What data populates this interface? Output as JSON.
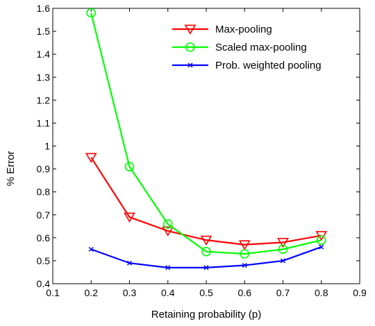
{
  "chart_data": {
    "type": "line",
    "title": "",
    "xlabel": "Retaining probability (p)",
    "ylabel": "% Error",
    "xlim": [
      0.1,
      0.9
    ],
    "ylim": [
      0.4,
      1.6
    ],
    "xticks": [
      "0.1",
      "0.2",
      "0.3",
      "0.4",
      "0.5",
      "0.6",
      "0.7",
      "0.8",
      "0.9"
    ],
    "yticks": [
      "0.4",
      "0.5",
      "0.6",
      "0.7",
      "0.8",
      "0.9",
      "1",
      "1.1",
      "1.2",
      "1.3",
      "1.4",
      "1.5",
      "1.6"
    ],
    "grid": false,
    "legend_position": "top-right",
    "x": [
      0.2,
      0.3,
      0.4,
      0.5,
      0.6,
      0.7,
      0.8
    ],
    "series": [
      {
        "name": "Max-pooling",
        "color": "#ff0000",
        "marker": "triangle-down",
        "values": [
          0.95,
          0.69,
          0.63,
          0.59,
          0.57,
          0.58,
          0.61
        ]
      },
      {
        "name": "Scaled max-pooling",
        "color": "#00ff00",
        "marker": "circle",
        "values": [
          1.58,
          0.91,
          0.66,
          0.54,
          0.53,
          0.55,
          0.59
        ]
      },
      {
        "name": "Prob. weighted pooling",
        "color": "#0000ff",
        "marker": "x",
        "values": [
          0.55,
          0.49,
          0.47,
          0.47,
          0.48,
          0.5,
          0.56
        ]
      }
    ]
  }
}
